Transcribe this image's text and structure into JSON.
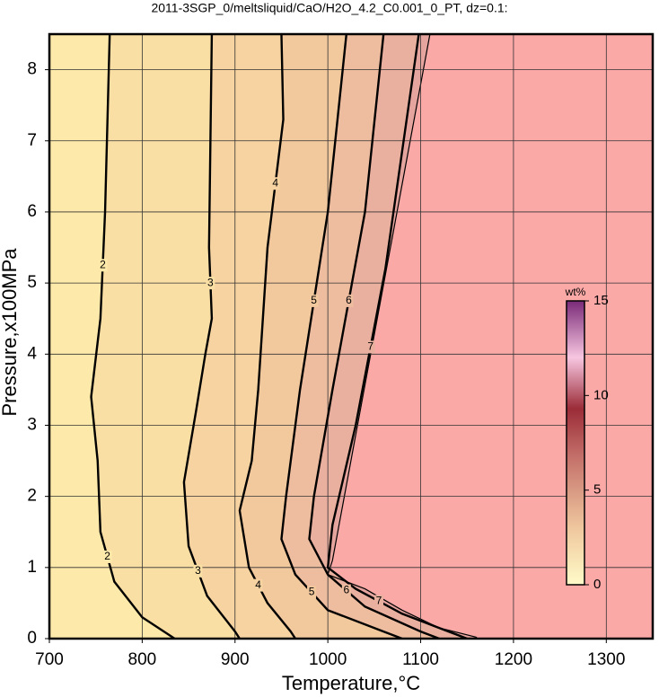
{
  "chart_data": {
    "type": "contour",
    "title": "2011-3SGP_0/meltsliquid/CaO/H2O_4.2_C0.001_0_PT, dz=0.1:",
    "x_label": "Temperature,°C",
    "y_label": "Pressure,x100MPa",
    "xlim": [
      700,
      1350
    ],
    "xticks": [
      700,
      800,
      900,
      1000,
      1100,
      1200,
      1300
    ],
    "ylim": [
      0,
      8.5
    ],
    "yticks": [
      0,
      1,
      2,
      3,
      4,
      5,
      6,
      7,
      8
    ],
    "grid": true,
    "background_color": "#faa9a7",
    "boundary": {
      "fill": "#e6a49e",
      "x": [
        1110,
        1005,
        1000,
        1040,
        1080,
        1120,
        1160,
        1160
      ],
      "y": [
        8.5,
        1.1,
        0.9,
        0.7,
        0.4,
        0.15,
        0.02,
        0
      ]
    },
    "contours": [
      {
        "level": 7,
        "fill": "#eab09f",
        "x": [
          1098,
          1062,
          1030,
          1005,
          1000,
          1030,
          1080,
          1130,
          1150
        ],
        "y": [
          8.5,
          5.2,
          3,
          1.6,
          1.0,
          0.7,
          0.35,
          0.1,
          0
        ]
      },
      {
        "level": 6,
        "fill": "#eebd9f",
        "x": [
          1060,
          1040,
          1005,
          985,
          980,
          1000,
          1040,
          1100,
          1120
        ],
        "y": [
          8.5,
          6,
          3.5,
          2.0,
          1.4,
          0.9,
          0.45,
          0.1,
          0
        ]
      },
      {
        "level": 5,
        "fill": "#f2c89d",
        "x": [
          1020,
          1000,
          970,
          955,
          950,
          965,
          1000,
          1060,
          1080
        ],
        "y": [
          8.5,
          6,
          3.5,
          2.0,
          1.4,
          0.9,
          0.4,
          0.1,
          0
        ]
      },
      {
        "level": 4,
        "fill": "#f6d3a0",
        "x": [
          950,
          952,
          935,
          925,
          918,
          905,
          915,
          935,
          960,
          965
        ],
        "y": [
          8.5,
          7.3,
          5.5,
          3.5,
          2.5,
          1.8,
          1.0,
          0.5,
          0.1,
          0
        ]
      },
      {
        "level": 3,
        "fill": "#fadfa4",
        "x": [
          875,
          872,
          875,
          868,
          858,
          845,
          850,
          870,
          900,
          905
        ],
        "y": [
          8.5,
          5.5,
          4.5,
          4,
          3.2,
          2.2,
          1.3,
          0.6,
          0.1,
          0
        ]
      },
      {
        "level": 2,
        "fill": "#fde9a9",
        "x": [
          765,
          760,
          755,
          745,
          752,
          755,
          770,
          800,
          835
        ],
        "y": [
          8.5,
          6,
          4.5,
          3.4,
          2.5,
          1.5,
          0.8,
          0.3,
          0
        ]
      }
    ],
    "colorbar": {
      "label": "wt%",
      "lim": [
        0,
        15
      ],
      "ticks": [
        0,
        5,
        10,
        15
      ]
    }
  }
}
